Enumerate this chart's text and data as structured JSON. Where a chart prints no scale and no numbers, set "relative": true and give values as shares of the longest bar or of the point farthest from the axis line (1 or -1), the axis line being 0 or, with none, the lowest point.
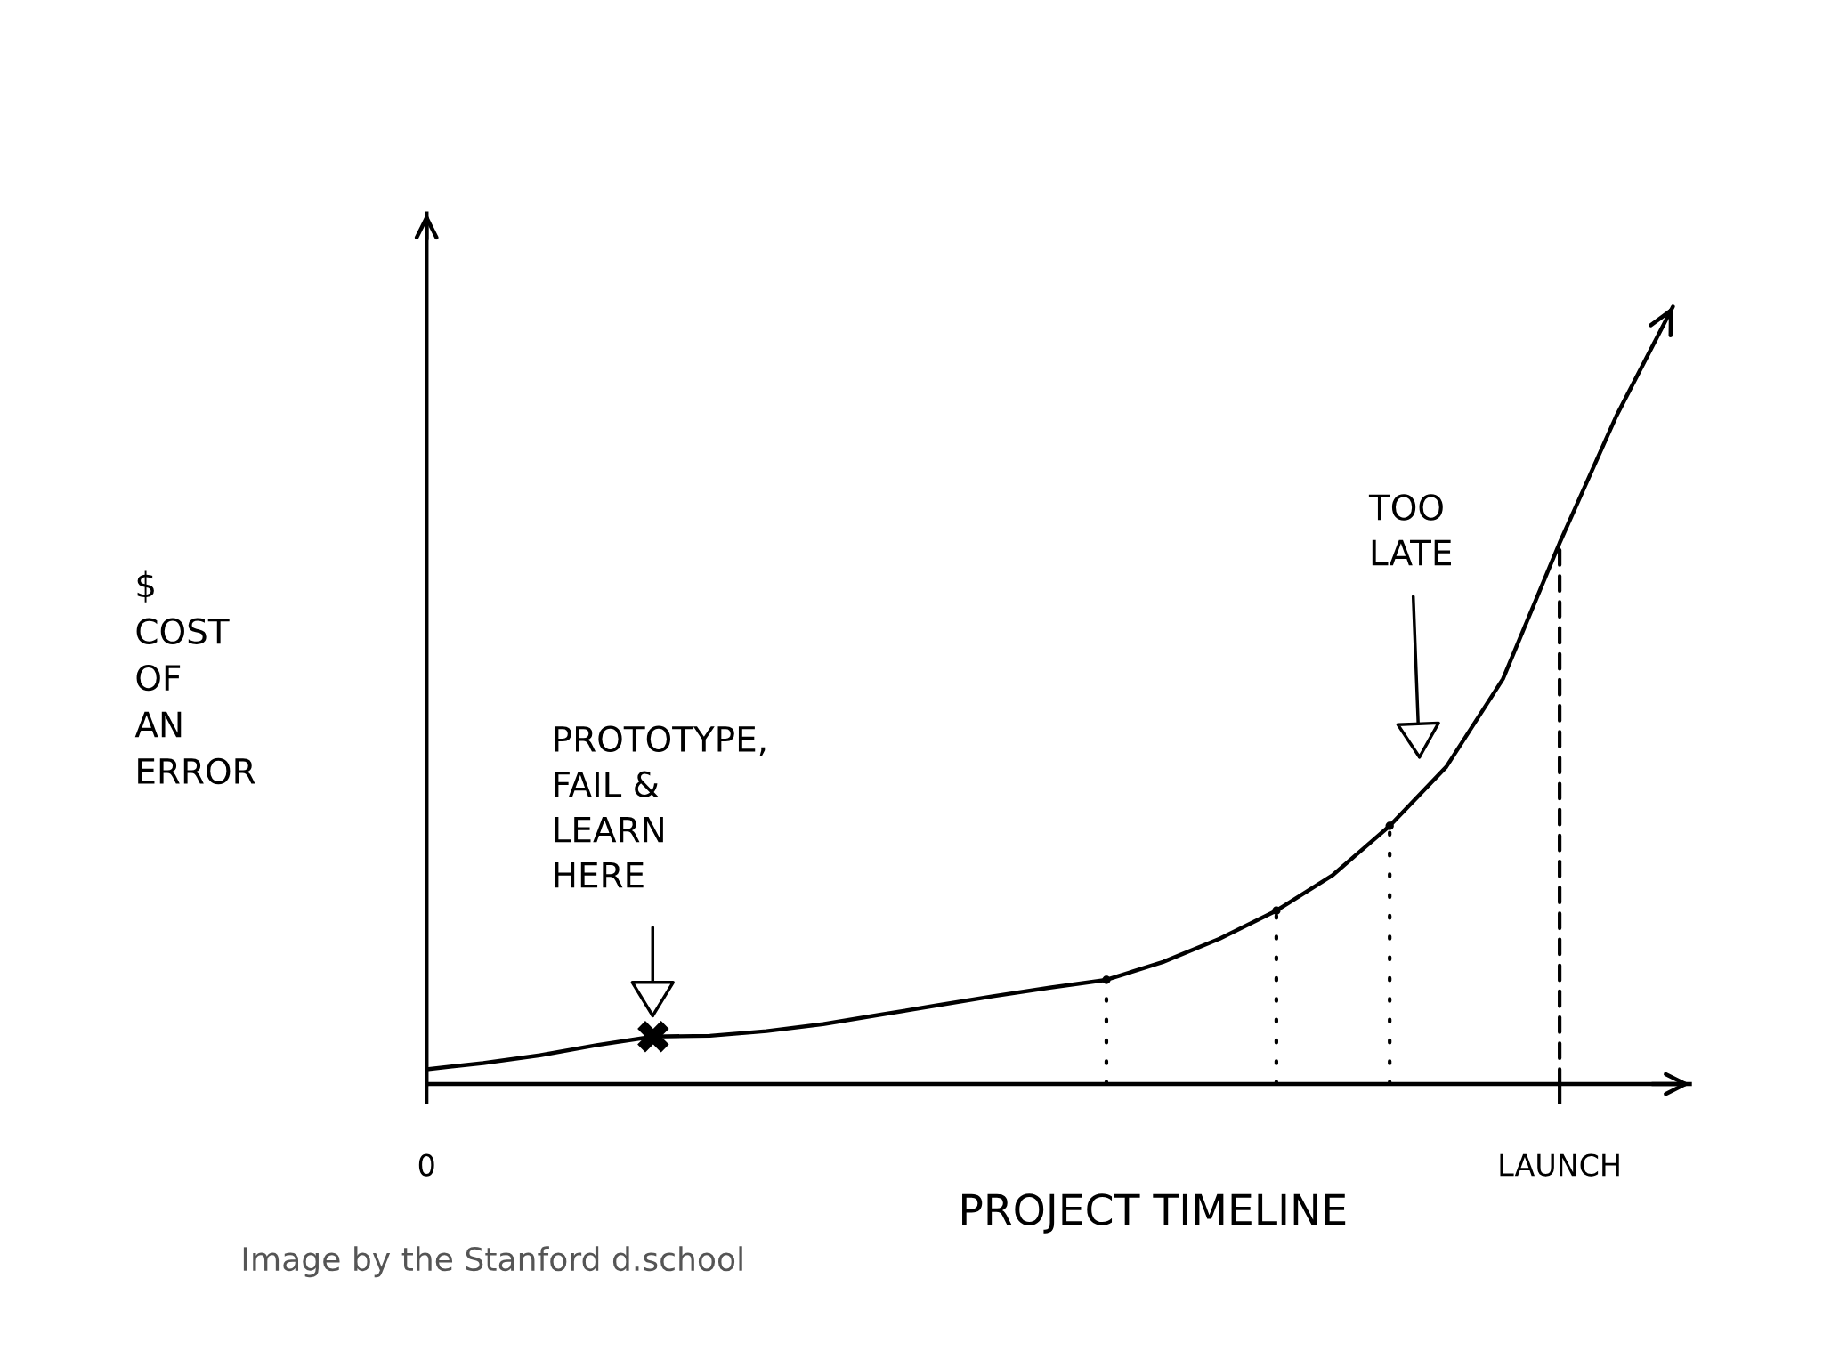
{
  "chart_data": {
    "type": "line",
    "relative": true,
    "xlabel": "PROJECT TIMELINE",
    "ylabel": "$\nCOST\nOF\nAN\nERROR",
    "tick_labels": "x",
    "categories": [
      "0",
      null,
      null,
      null,
      null,
      null,
      null,
      null,
      null,
      null,
      null,
      null,
      null,
      null,
      null,
      null,
      null,
      null,
      null,
      null,
      "LAUNCH",
      null,
      null
    ],
    "series": [
      {
        "color": "#000000",
        "values": [
          0.019,
          0.027,
          0.037,
          0.05,
          0.061,
          0.062,
          0.068,
          0.077,
          0.089,
          0.101,
          0.113,
          0.124,
          0.134,
          0.157,
          0.187,
          0.223,
          0.269,
          0.332,
          0.408,
          0.521,
          0.696,
          0.859,
          1.0
        ]
      },
      {
        "type": "scatter",
        "color": "#000000",
        "marker": "cross",
        "values": [
          null,
          null,
          null,
          null,
          0.061,
          null,
          null,
          null,
          null,
          null,
          null,
          null,
          null,
          null,
          null,
          null,
          null,
          null,
          null,
          null,
          null,
          null,
          null
        ]
      },
      {
        "type": "lollipop",
        "color": "#000000",
        "marker": "circle",
        "line_style": "dotted",
        "values": [
          null,
          null,
          null,
          null,
          null,
          null,
          null,
          null,
          null,
          null,
          null,
          null,
          0.134,
          null,
          null,
          0.223,
          null,
          0.332,
          null,
          null,
          null,
          null,
          null
        ]
      }
    ],
    "ref_lines": [
      {
        "axis": "x",
        "value": "LAUNCH",
        "line_style": "dashed",
        "color": "#000000"
      }
    ],
    "annotations": [
      "PROTOTYPE,\nFAIL &\nLEARN\nHERE",
      "TOO\nLATE",
      "Image by the Stanford d.school"
    ]
  }
}
